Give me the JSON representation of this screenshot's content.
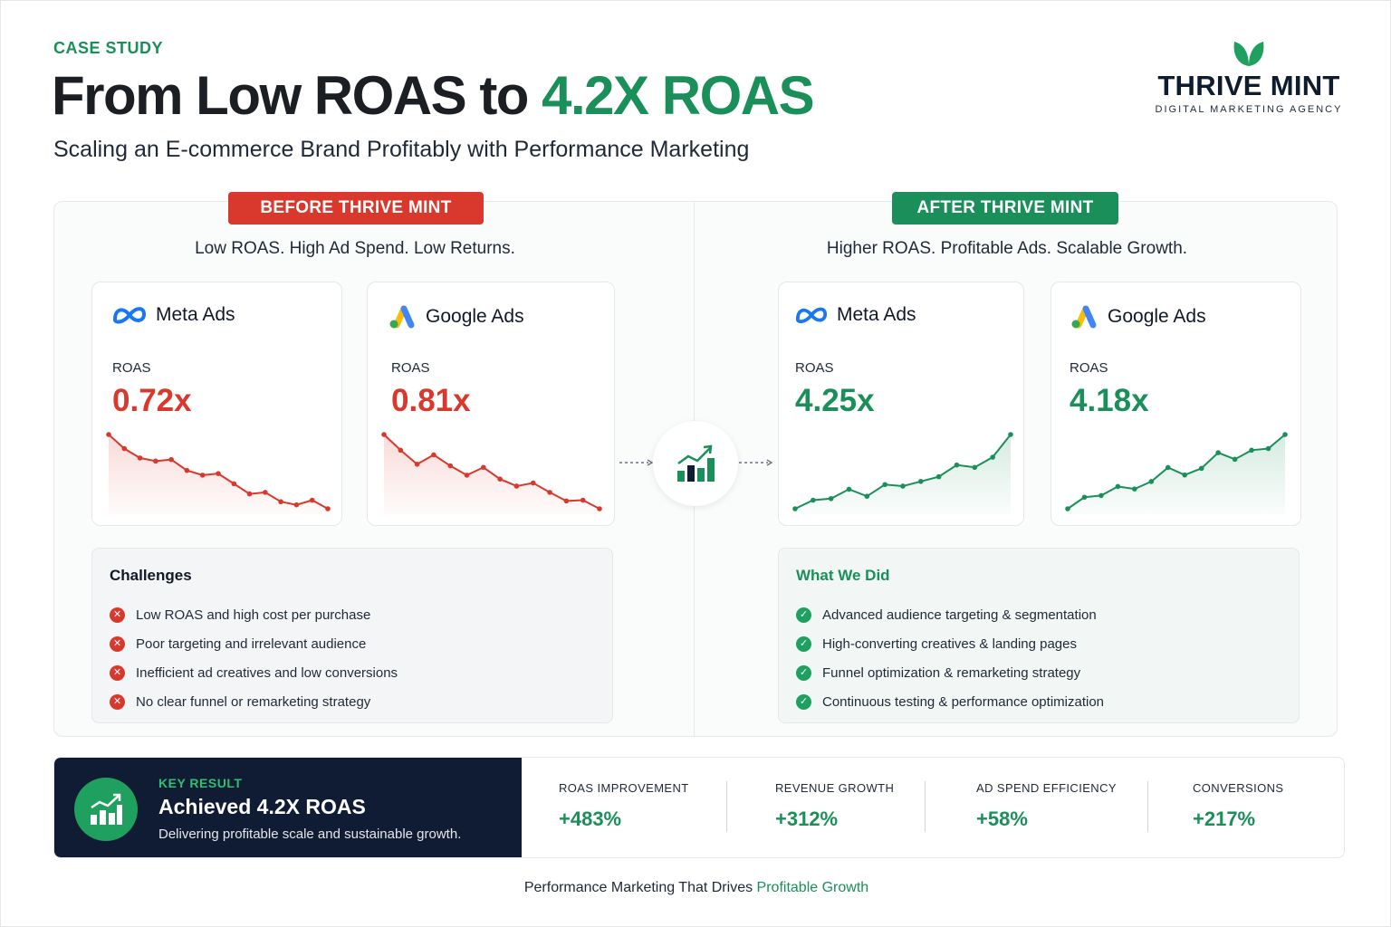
{
  "header": {
    "eyebrow": "CASE STUDY",
    "title_prefix": "From Low ROAS to",
    "title_accent": "4.2X ROAS",
    "subtitle": "Scaling an E-commerce Brand Profitably with Performance Marketing"
  },
  "brand": {
    "name": "THRIVE MINT",
    "tagline": "DIGITAL MARKETING AGENCY",
    "colors": {
      "green": "#1a8f5a",
      "red": "#d9382c",
      "navy": "#0f1c33"
    }
  },
  "before": {
    "badge": "BEFORE THRIVE MINT",
    "tagline": "Low ROAS. High Ad Spend. Low Returns.",
    "cards": [
      {
        "icon": "meta-logo-icon",
        "platform": "Meta Ads",
        "metric_label": "ROAS",
        "value": "0.72x",
        "trend": [
          10,
          8.2,
          7.0,
          6.6,
          6.8,
          5.4,
          4.8,
          5.0,
          3.7,
          2.4,
          2.6,
          1.4,
          1.0,
          1.6,
          0.5
        ]
      },
      {
        "icon": "google-ads-logo-icon",
        "platform": "Google Ads",
        "metric_label": "ROAS",
        "value": "0.81x",
        "trend": [
          10,
          8.0,
          6.2,
          7.4,
          6.0,
          4.8,
          5.8,
          4.3,
          3.4,
          3.8,
          2.6,
          1.5,
          1.6,
          0.5
        ]
      }
    ],
    "challenges": {
      "title": "Challenges",
      "items": [
        "Low ROAS and high cost per purchase",
        "Poor targeting and irrelevant audience",
        "Inefficient ad creatives and low conversions",
        "No clear funnel or remarketing strategy"
      ]
    }
  },
  "after": {
    "badge": "AFTER THRIVE MINT",
    "tagline": "Higher ROAS. Profitable Ads. Scalable Growth.",
    "cards": [
      {
        "icon": "meta-logo-icon",
        "platform": "Meta Ads",
        "metric_label": "ROAS",
        "value": "4.25x",
        "trend": [
          0.5,
          1.6,
          1.8,
          3.0,
          2.1,
          3.6,
          3.4,
          4.0,
          4.6,
          6.1,
          5.8,
          7.1,
          10
        ]
      },
      {
        "icon": "google-ads-logo-icon",
        "platform": "Google Ads",
        "metric_label": "ROAS",
        "value": "4.18x",
        "trend": [
          0.5,
          1.9,
          2.1,
          3.2,
          2.9,
          3.8,
          5.5,
          4.6,
          5.4,
          7.3,
          6.5,
          7.6,
          7.8,
          9.5
        ]
      }
    ],
    "actions": {
      "title": "What We Did",
      "items": [
        "Advanced audience targeting & segmentation",
        "High-converting creatives & landing pages",
        "Funnel optimization & remarketing strategy",
        "Continuous testing & performance optimization"
      ]
    }
  },
  "key_result": {
    "label": "KEY RESULT",
    "title": "Achieved 4.2X ROAS",
    "description": "Delivering profitable scale and sustainable growth."
  },
  "metrics": [
    {
      "label": "ROAS IMPROVEMENT",
      "value": "+483%"
    },
    {
      "label": "REVENUE GROWTH",
      "value": "+312%"
    },
    {
      "label": "AD SPEND EFFICIENCY",
      "value": "+58%"
    },
    {
      "label": "CONVERSIONS",
      "value": "+217%"
    }
  ],
  "footer": {
    "prefix": "Performance Marketing That Drives",
    "accent": "Profitable Growth"
  }
}
